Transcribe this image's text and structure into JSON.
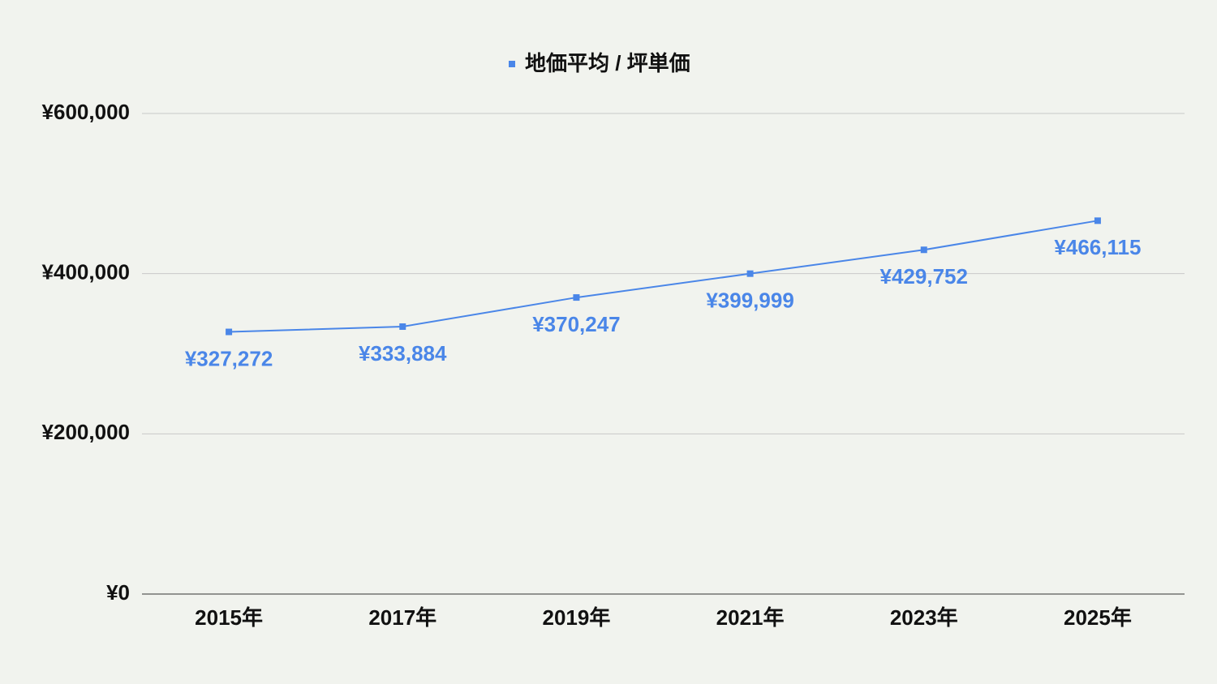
{
  "chart_data": {
    "type": "line",
    "categories": [
      "2015年",
      "2017年",
      "2019年",
      "2021年",
      "2023年",
      "2025年"
    ],
    "series": [
      {
        "name": "地価平均 / 坪単価",
        "color": "#4a86e8",
        "values": [
          327272,
          333884,
          370247,
          399999,
          429752,
          466115
        ],
        "value_labels": [
          "¥327,272",
          "¥333,884",
          "¥370,247",
          "¥399,999",
          "¥429,752",
          "¥466,115"
        ]
      }
    ],
    "ylim": [
      0,
      600000
    ],
    "yticks": [
      {
        "value": 0,
        "label": "¥0"
      },
      {
        "value": 200000,
        "label": "¥200,000"
      },
      {
        "value": 400000,
        "label": "¥400,000"
      },
      {
        "value": 600000,
        "label": "¥600,000"
      }
    ],
    "grid": true,
    "legend": "top"
  }
}
